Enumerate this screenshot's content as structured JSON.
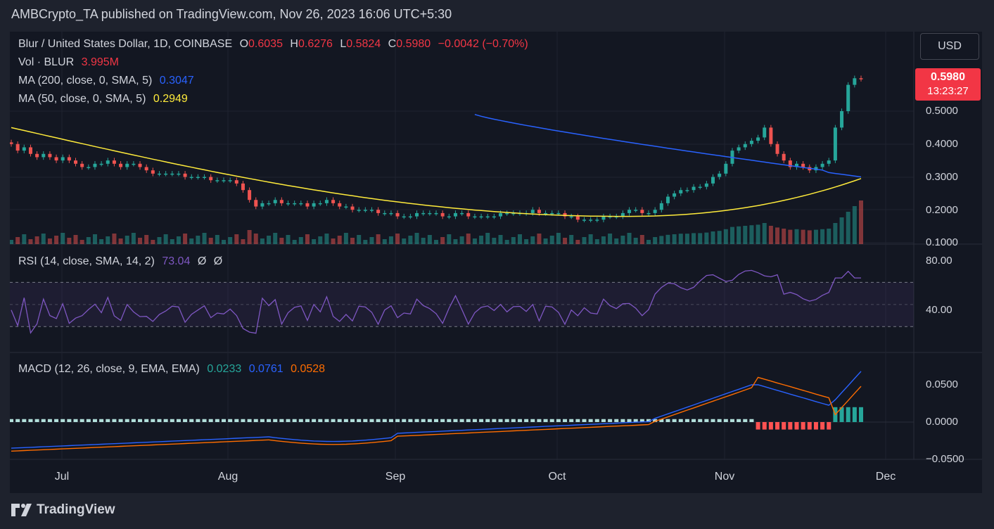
{
  "header": {
    "publisher": "AMBCrypto_TA published on TradingView.com, Nov 26, 2023 16:06 UTC+5:30"
  },
  "legend": {
    "symbol": "Blur / United States Dollar, 1D, COINBASE",
    "o_key": "O",
    "o_val": "0.6035",
    "h_key": "H",
    "h_val": "0.6276",
    "l_key": "L",
    "l_val": "0.5824",
    "c_key": "C",
    "c_val": "0.5980",
    "change": "−0.0042 (−0.70%)",
    "vol_label": "Vol · BLUR",
    "vol_val": "3.995M",
    "ma200_label": "MA (200, close, 0, SMA, 5)",
    "ma200_val": "0.3047",
    "ma50_label": "MA (50, close, 0, SMA, 5)",
    "ma50_val": "0.2949",
    "rsi_label": "RSI (14, close, SMA, 14, 2)",
    "rsi_val": "73.04",
    "rsi_extra1": "Ø",
    "rsi_extra2": "Ø",
    "macd_label": "MACD (12, 26, close, 9, EMA, EMA)",
    "macd_hist": "0.0233",
    "macd_line": "0.0761",
    "macd_signal": "0.0528"
  },
  "currency_button": "USD",
  "price_tag": {
    "price": "0.5980",
    "countdown": "13:23:27"
  },
  "price_axis": [
    "0.5000",
    "0.4000",
    "0.3000",
    "0.2000",
    "0.1000"
  ],
  "rsi_axis": [
    "80.00",
    "40.00"
  ],
  "macd_axis": [
    "0.0500",
    "0.0000",
    "−0.0500"
  ],
  "time_axis": [
    "Jul",
    "Aug",
    "Sep",
    "Oct",
    "Nov",
    "Dec"
  ],
  "footer": {
    "brand": "TradingView"
  },
  "colors": {
    "up": "#26a69a",
    "down": "#ef5350",
    "ma200": "#2962ff",
    "ma50": "#ffeb3b",
    "rsi": "#7e57c2",
    "macd": "#2962ff",
    "signal": "#ff6d00"
  },
  "chart_data": {
    "type": "candlestick",
    "interval": "1D",
    "x_range": [
      "2023-06-23",
      "2023-11-26"
    ],
    "price_ylim": [
      0.1,
      0.62
    ],
    "candles_close_approx": [
      0.4,
      0.38,
      0.39,
      0.37,
      0.36,
      0.37,
      0.36,
      0.35,
      0.36,
      0.35,
      0.34,
      0.33,
      0.33,
      0.34,
      0.34,
      0.35,
      0.34,
      0.33,
      0.34,
      0.34,
      0.33,
      0.32,
      0.31,
      0.31,
      0.31,
      0.31,
      0.31,
      0.3,
      0.3,
      0.3,
      0.3,
      0.29,
      0.29,
      0.29,
      0.29,
      0.28,
      0.26,
      0.23,
      0.21,
      0.22,
      0.22,
      0.23,
      0.22,
      0.22,
      0.22,
      0.22,
      0.21,
      0.22,
      0.22,
      0.23,
      0.22,
      0.21,
      0.21,
      0.2,
      0.2,
      0.2,
      0.2,
      0.19,
      0.19,
      0.19,
      0.18,
      0.18,
      0.18,
      0.19,
      0.19,
      0.19,
      0.19,
      0.18,
      0.18,
      0.19,
      0.19,
      0.18,
      0.18,
      0.18,
      0.18,
      0.18,
      0.19,
      0.19,
      0.19,
      0.19,
      0.19,
      0.2,
      0.19,
      0.19,
      0.19,
      0.19,
      0.18,
      0.18,
      0.17,
      0.17,
      0.17,
      0.17,
      0.18,
      0.18,
      0.18,
      0.19,
      0.2,
      0.2,
      0.19,
      0.19,
      0.2,
      0.22,
      0.24,
      0.25,
      0.26,
      0.26,
      0.27,
      0.27,
      0.28,
      0.3,
      0.31,
      0.34,
      0.38,
      0.39,
      0.4,
      0.41,
      0.42,
      0.45,
      0.4,
      0.37,
      0.35,
      0.33,
      0.34,
      0.33,
      0.32,
      0.33,
      0.34,
      0.35,
      0.45,
      0.5,
      0.58,
      0.6,
      0.598
    ],
    "ma200_range": [
      0.49,
      0.3047
    ],
    "ma50_range": [
      0.45,
      0.2949
    ],
    "rsi_ylim": [
      20,
      90
    ],
    "rsi_bands": [
      70,
      30
    ],
    "macd_ylim": [
      -0.05,
      0.08
    ],
    "macd_last": {
      "hist": 0.0233,
      "macd": 0.0761,
      "signal": 0.0528
    }
  }
}
